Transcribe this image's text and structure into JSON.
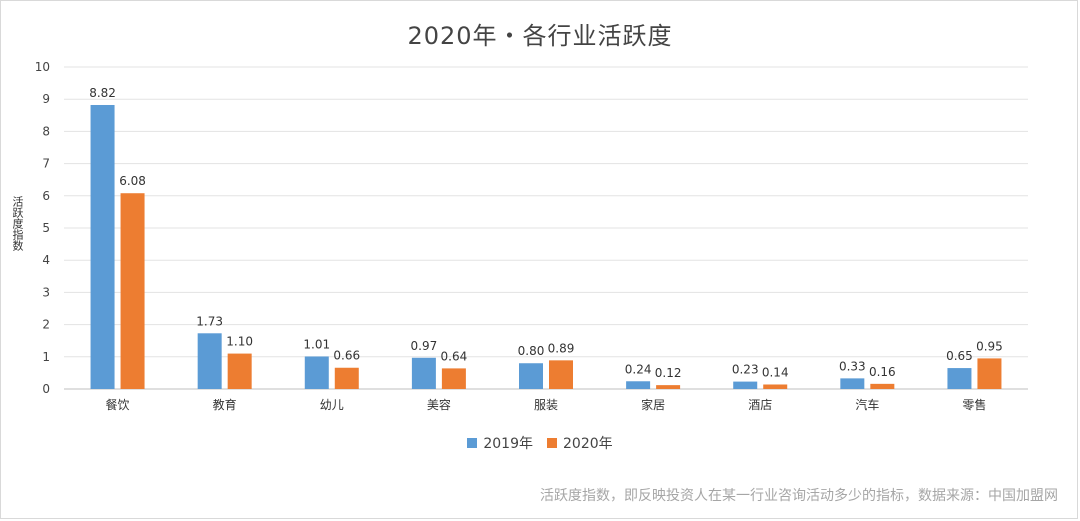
{
  "chart_data": {
    "type": "bar",
    "title": "2020年・各行业活跃度",
    "ylabel": "活跃度指数",
    "xlabel": "",
    "ylim": [
      0,
      10
    ],
    "yticks": [
      0,
      1,
      2,
      3,
      4,
      5,
      6,
      7,
      8,
      9,
      10
    ],
    "grid": true,
    "legend_position": "bottom",
    "categories": [
      "餐饮",
      "教育",
      "幼儿",
      "美容",
      "服装",
      "家居",
      "酒店",
      "汽车",
      "零售"
    ],
    "series": [
      {
        "name": "2019年",
        "color": "#5b9bd5",
        "values": [
          8.82,
          1.73,
          1.01,
          0.97,
          0.8,
          0.24,
          0.23,
          0.33,
          0.65
        ],
        "labels": [
          "8.82",
          "1.73",
          "1.01",
          "0.97",
          "0.80",
          "0.24",
          "0.23",
          "0.33",
          "0.65"
        ]
      },
      {
        "name": "2020年",
        "color": "#ed7d31",
        "values": [
          6.08,
          1.1,
          0.66,
          0.64,
          0.89,
          0.12,
          0.14,
          0.16,
          0.95
        ],
        "labels": [
          "6.08",
          "1.10",
          "0.66",
          "0.64",
          "0.89",
          "0.12",
          "0.14",
          "0.16",
          "0.95"
        ]
      }
    ],
    "footnote": "活跃度指数，即反映投资人在某一行业咨询活动多少的指标，数据来源：中国加盟网"
  }
}
